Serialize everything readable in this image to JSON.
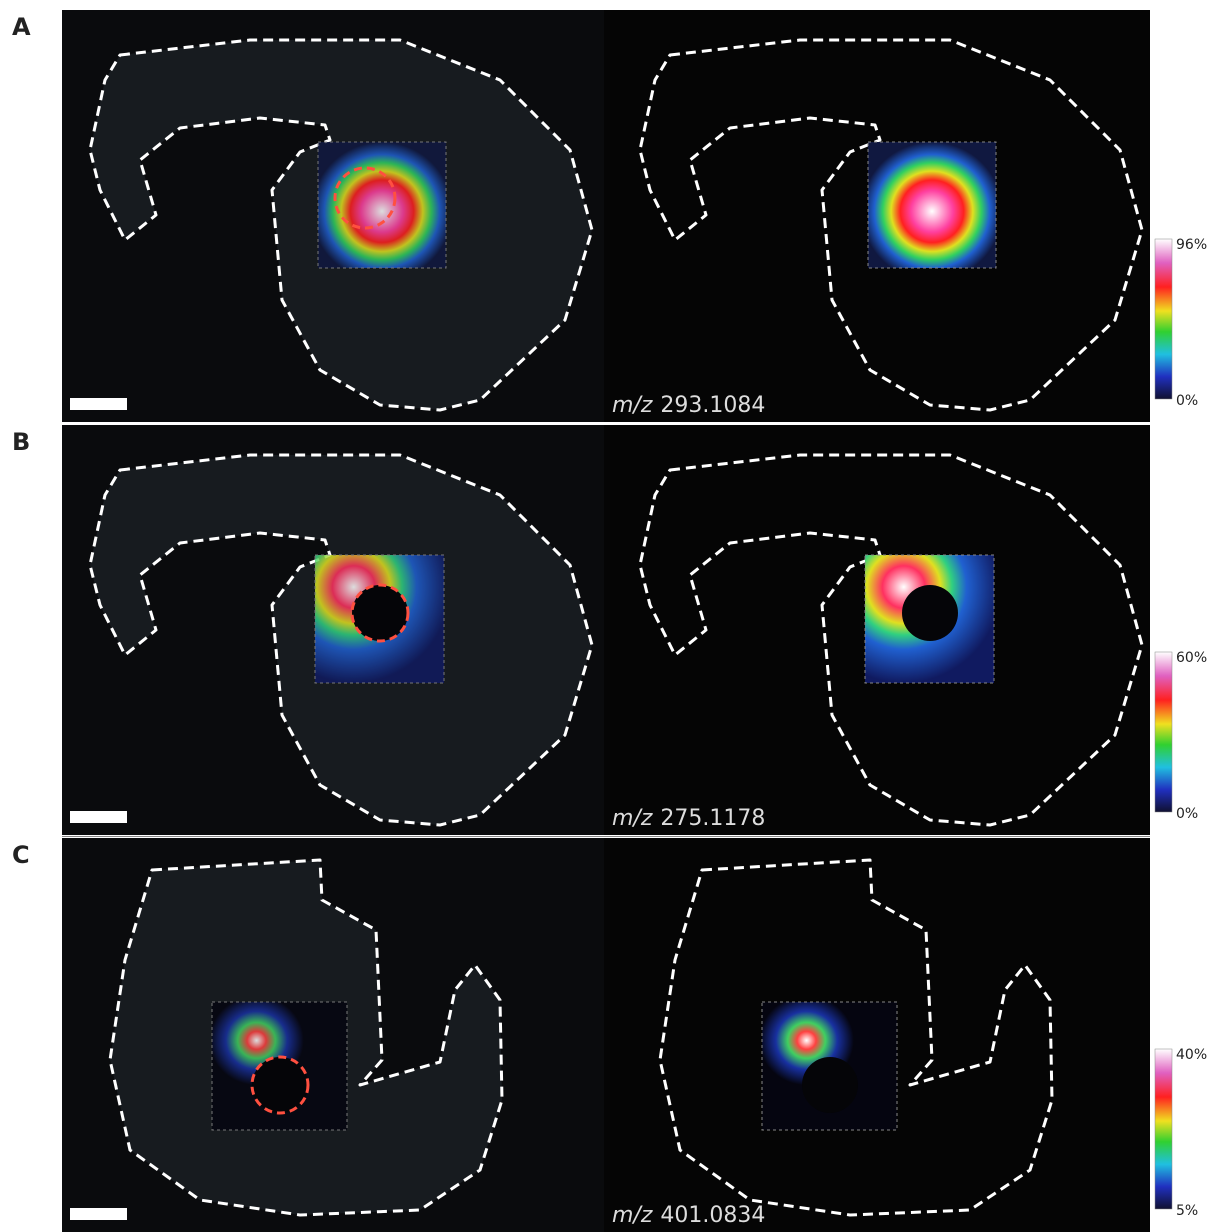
{
  "panels": [
    {
      "label": "A",
      "mz_prefix": "m/z",
      "mz_value": "293.1084",
      "colorbar_max": "96%",
      "colorbar_min": "0%"
    },
    {
      "label": "B",
      "mz_prefix": "m/z",
      "mz_value": "275.1178",
      "colorbar_max": "60%",
      "colorbar_min": "0%"
    },
    {
      "label": "C",
      "mz_prefix": "m/z",
      "mz_value": "401.0834",
      "colorbar_max": "40%",
      "colorbar_min": "5%"
    }
  ]
}
